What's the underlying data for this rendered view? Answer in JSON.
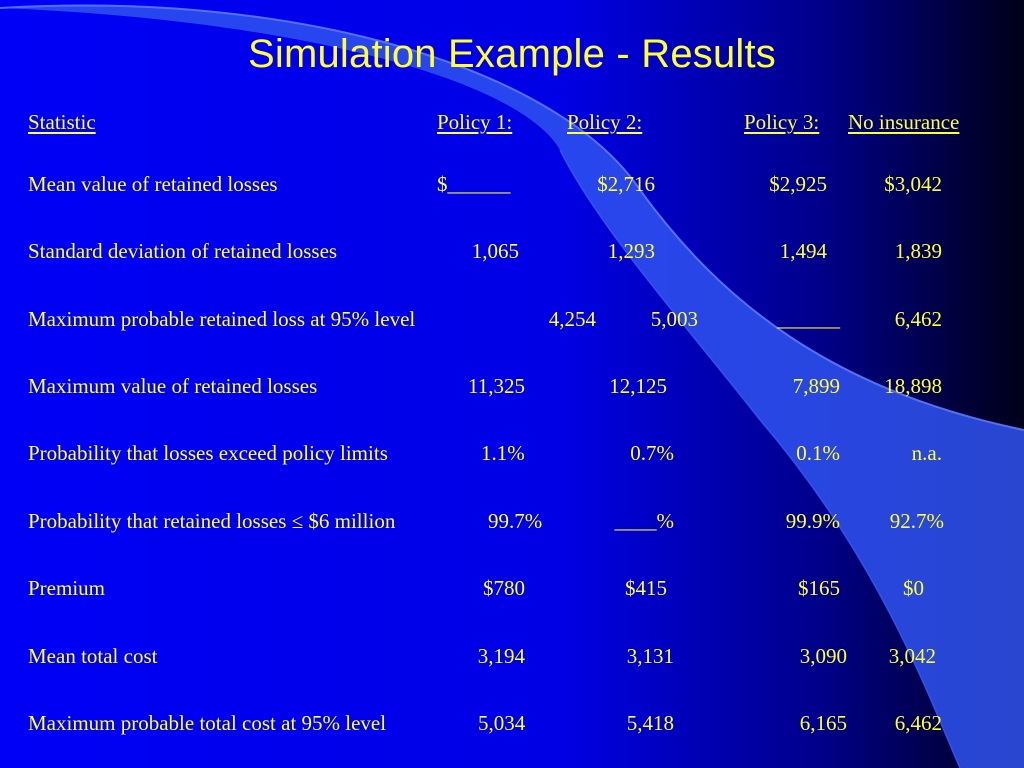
{
  "slide": {
    "title": "Simulation Example - Results"
  },
  "table": {
    "headers": {
      "statistic": "Statistic",
      "policy1": "Policy 1:",
      "policy2": "Policy 2:",
      "policy3": "Policy 3:",
      "no_insurance": "No insurance"
    },
    "rows": [
      {
        "label": "Mean value of retained losses",
        "policy1": "$______",
        "policy2": "$2,716",
        "policy3": "$2,925",
        "no_insurance": "$3,042"
      },
      {
        "label": "Standard deviation of retained losses",
        "policy1": "1,065",
        "policy2": "1,293",
        "policy3": "1,494",
        "no_insurance": "1,839"
      },
      {
        "label": "Maximum probable retained loss at 95% level",
        "policy1": "4,254",
        "policy2": "5,003",
        "policy3": "______",
        "no_insurance": "6,462"
      },
      {
        "label": "Maximum value of retained losses",
        "policy1": "11,325",
        "policy2": "12,125",
        "policy3": "7,899",
        "no_insurance": "18,898"
      },
      {
        "label": "Probability that losses exceed policy limits",
        "policy1": "1.1%",
        "policy2": "0.7%",
        "policy3": "0.1%",
        "no_insurance": "n.a."
      },
      {
        "label": "Probability that retained losses ≤ $6 million",
        "policy1": "99.7%",
        "policy2": "____%",
        "policy3": "99.9%",
        "no_insurance": "92.7%"
      },
      {
        "label": "Premium",
        "policy1": "$780",
        "policy2": "$415",
        "policy3": "$165",
        "no_insurance": "$0"
      },
      {
        "label": "Mean total cost",
        "policy1": "3,194",
        "policy2": "3,131",
        "policy3": "3,090",
        "no_insurance": "3,042"
      },
      {
        "label": "Maximum probable total cost at 95% level",
        "policy1": "5,034",
        "policy2": "5,418",
        "policy3": "6,165",
        "no_insurance": "6,462"
      }
    ]
  }
}
